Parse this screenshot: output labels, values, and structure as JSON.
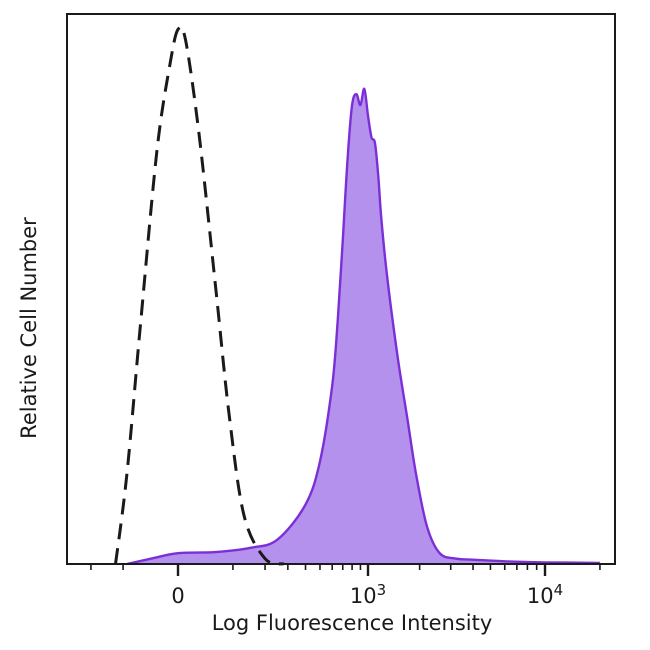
{
  "chart_data": {
    "type": "area",
    "title": "",
    "xlabel": "Log Fluorescence Intensity",
    "ylabel": "Relative Cell Number",
    "x_scale": "biexponential",
    "xlim": [
      -300,
      25000
    ],
    "ylim": [
      0,
      1.0
    ],
    "grid": false,
    "legend": "none",
    "x_ticks": [
      {
        "value": 0,
        "label": "0"
      },
      {
        "value": 1000,
        "base": "10",
        "exp": "3"
      },
      {
        "value": 10000,
        "base": "10",
        "exp": "4"
      }
    ],
    "series": [
      {
        "style": "dashed-outline",
        "color": "#1a1a1a",
        "x": [
          -120,
          -90,
          -60,
          -30,
          -10,
          0,
          10,
          30,
          60,
          90,
          130,
          200,
          280
        ],
        "y": [
          0.0,
          0.17,
          0.45,
          0.77,
          0.93,
          0.99,
          0.97,
          0.8,
          0.52,
          0.28,
          0.09,
          0.01,
          0.0
        ]
      },
      {
        "style": "filled",
        "color": "#7b2fd6",
        "fill": "#b591ee",
        "x": [
          -90,
          -40,
          0,
          60,
          150,
          250,
          400,
          500,
          600,
          650,
          700,
          750,
          800,
          850,
          900,
          950,
          1000,
          1050,
          1100,
          1150,
          1200,
          1300,
          1500,
          1700,
          1900,
          2200,
          2600,
          3200,
          4000,
          6000,
          10000,
          20000
        ],
        "y": [
          0.0,
          0.01,
          0.02,
          0.022,
          0.03,
          0.045,
          0.11,
          0.19,
          0.33,
          0.45,
          0.6,
          0.75,
          0.85,
          0.87,
          0.85,
          0.88,
          0.83,
          0.79,
          0.78,
          0.72,
          0.64,
          0.53,
          0.38,
          0.27,
          0.17,
          0.07,
          0.02,
          0.01,
          0.008,
          0.005,
          0.003,
          0.002
        ]
      }
    ]
  }
}
